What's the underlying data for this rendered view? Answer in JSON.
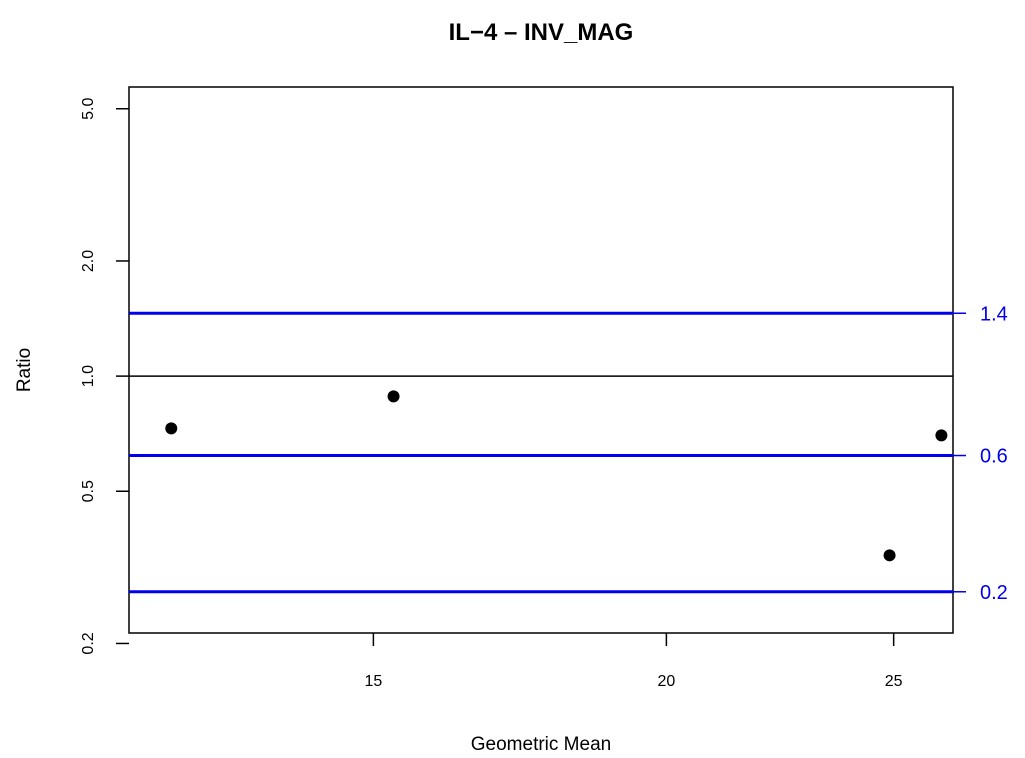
{
  "chart_data": {
    "type": "scatter",
    "title": "IL−4 – INV_MAG",
    "xlabel": "Geometric Mean",
    "ylabel": "Ratio",
    "x_scale": "log",
    "y_scale": "log",
    "xlim": [
      11.8,
      26.5
    ],
    "ylim": [
      0.213,
      5.7
    ],
    "x_ticks": [
      {
        "value": 15,
        "label": "15"
      },
      {
        "value": 20,
        "label": "20"
      },
      {
        "value": 25,
        "label": "25"
      }
    ],
    "y_ticks": [
      {
        "value": 0.2,
        "label": "0.2"
      },
      {
        "value": 0.5,
        "label": "0.5"
      },
      {
        "value": 1.0,
        "label": "1.0"
      },
      {
        "value": 2.0,
        "label": "2.0"
      },
      {
        "value": 5.0,
        "label": "5.0"
      }
    ],
    "points": [
      {
        "x": 12.3,
        "y": 0.73
      },
      {
        "x": 15.3,
        "y": 0.885
      },
      {
        "x": 24.9,
        "y": 0.34
      },
      {
        "x": 26.2,
        "y": 0.7
      }
    ],
    "reference_line": {
      "y": 1.0,
      "color": "#000000"
    },
    "threshold_lines": [
      {
        "y": 1.4,
        "label": "1.4"
      },
      {
        "y": 0.6,
        "label": "0.6"
      },
      {
        "y": 0.2,
        "label": "0.2"
      }
    ],
    "threshold_color": "#0000ee",
    "grid": false,
    "box": true
  }
}
